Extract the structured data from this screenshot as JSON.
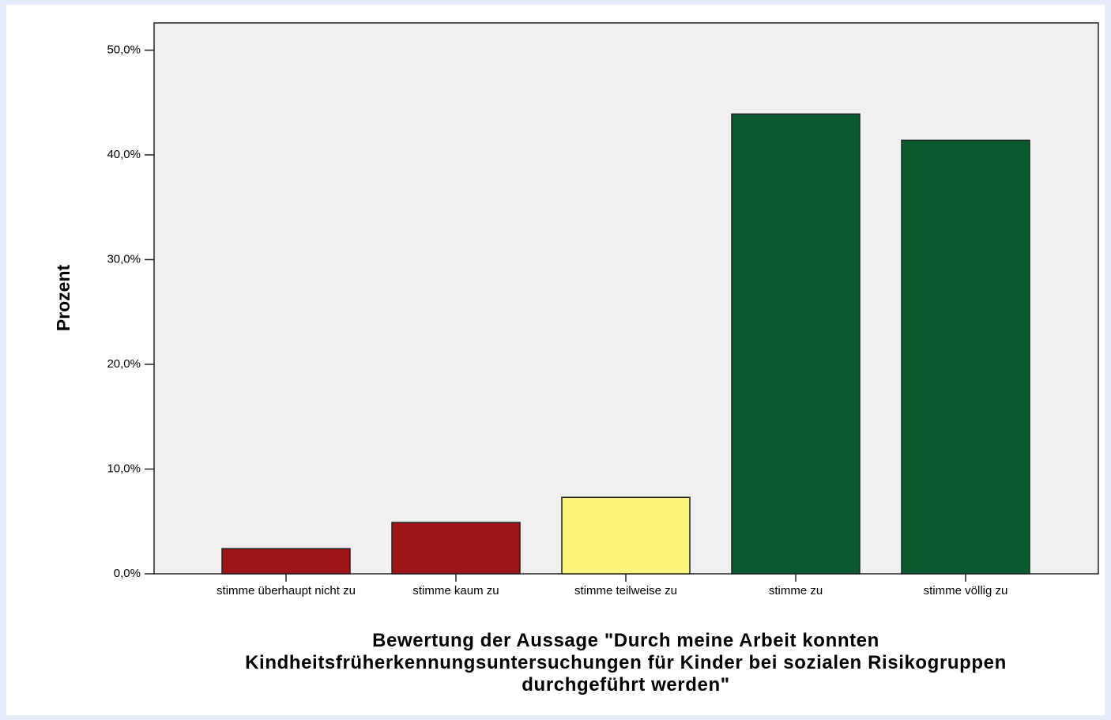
{
  "chart_data": {
    "type": "bar",
    "categories": [
      "stimme überhaupt nicht zu",
      "stimme kaum zu",
      "stimme teilweise zu",
      "stimme zu",
      "stimme völlig zu"
    ],
    "values": [
      2.4,
      4.9,
      7.3,
      43.9,
      41.4
    ],
    "colors": [
      "#9e1518",
      "#9e1518",
      "#fbf67a",
      "#0b5a2f",
      "#0b5a2f"
    ],
    "ylabel": "Prozent",
    "xlabel": "Bewertung der Aussage \"Durch meine Arbeit konnten Kindheitsfrüherkennungsuntersuchungen für Kinder bei sozialen Risikogruppen durchgeführt werden\"",
    "ylim": [
      0,
      52.6
    ],
    "yticks": [
      {
        "value": 0,
        "label": "0,0%"
      },
      {
        "value": 10,
        "label": "10,0%"
      },
      {
        "value": 20,
        "label": "20,0%"
      },
      {
        "value": 30,
        "label": "30,0%"
      },
      {
        "value": 40,
        "label": "40,0%"
      },
      {
        "value": 50,
        "label": "50,0%"
      }
    ]
  }
}
